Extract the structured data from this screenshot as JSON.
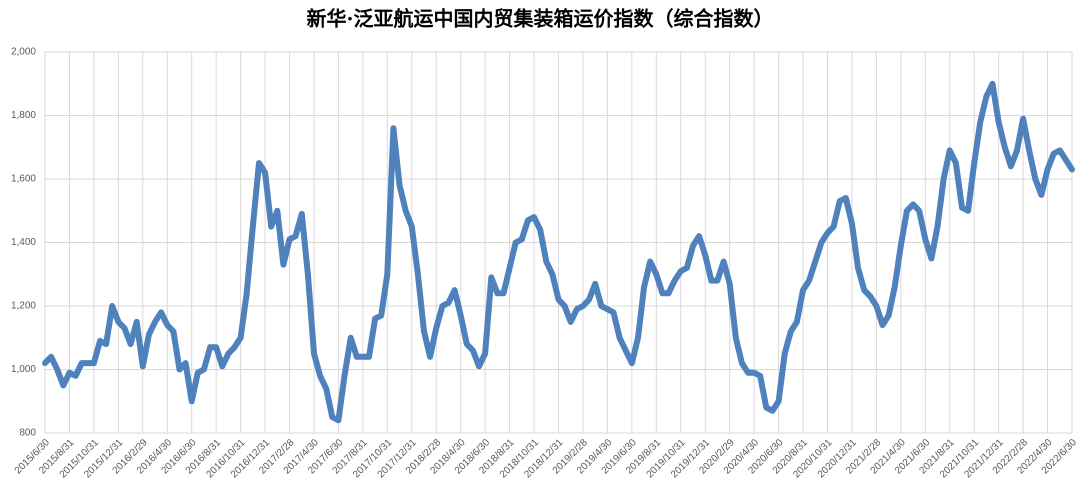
{
  "chart_data": {
    "type": "line",
    "title": "新华·泛亚航运中国内贸集装箱运价指数（综合指数）",
    "categories": [
      "2015/6/30",
      null,
      null,
      null,
      "2015/8/31",
      null,
      null,
      null,
      "2015/10/31",
      null,
      null,
      null,
      "2015/12/31",
      null,
      null,
      null,
      "2016/2/29",
      null,
      null,
      null,
      "2016/4/30",
      null,
      null,
      null,
      "2016/6/30",
      null,
      null,
      null,
      "2016/8/31",
      null,
      null,
      null,
      "2016/10/31",
      null,
      null,
      null,
      "2016/12/31",
      null,
      null,
      null,
      "2017/2/28",
      null,
      null,
      null,
      "2017/4/30",
      null,
      null,
      null,
      "2017/6/30",
      null,
      null,
      null,
      "2017/8/31",
      null,
      null,
      null,
      "2017/10/31",
      null,
      null,
      null,
      "2017/12/31",
      null,
      null,
      null,
      "2018/2/28",
      null,
      null,
      null,
      "2018/4/30",
      null,
      null,
      null,
      "2018/6/30",
      null,
      null,
      null,
      "2018/8/31",
      null,
      null,
      null,
      "2018/10/31",
      null,
      null,
      null,
      "2018/12/31",
      null,
      null,
      null,
      "2019/2/28",
      null,
      null,
      null,
      "2019/4/30",
      null,
      null,
      null,
      "2019/6/30",
      null,
      null,
      null,
      "2019/8/31",
      null,
      null,
      null,
      "2019/10/31",
      null,
      null,
      null,
      "2019/12/31",
      null,
      null,
      null,
      "2020/2/29",
      null,
      null,
      null,
      "2020/4/30",
      null,
      null,
      null,
      "2020/6/30",
      null,
      null,
      null,
      "2020/8/31",
      null,
      null,
      null,
      "2020/10/31",
      null,
      null,
      null,
      "2020/12/31",
      null,
      null,
      null,
      "2021/2/28",
      null,
      null,
      null,
      "2021/4/30",
      null,
      null,
      null,
      "2021/6/30",
      null,
      null,
      null,
      "2021/8/31",
      null,
      null,
      null,
      "2021/10/31",
      null,
      null,
      null,
      "2021/12/31",
      null,
      null,
      null,
      "2022/2/28",
      null,
      null,
      null,
      "2022/4/30",
      null,
      null,
      null,
      "2022/6/30"
    ],
    "values": [
      1020,
      1040,
      1000,
      950,
      990,
      980,
      1020,
      1020,
      1020,
      1090,
      1080,
      1200,
      1150,
      1130,
      1080,
      1150,
      1010,
      1110,
      1150,
      1180,
      1140,
      1120,
      1000,
      1020,
      900,
      990,
      1000,
      1070,
      1070,
      1010,
      1050,
      1070,
      1100,
      1240,
      1450,
      1650,
      1620,
      1450,
      1500,
      1330,
      1410,
      1420,
      1490,
      1300,
      1050,
      980,
      940,
      850,
      840,
      980,
      1100,
      1040,
      1040,
      1040,
      1160,
      1170,
      1300,
      1760,
      1580,
      1500,
      1450,
      1300,
      1120,
      1040,
      1130,
      1200,
      1210,
      1250,
      1170,
      1080,
      1060,
      1010,
      1050,
      1290,
      1240,
      1240,
      1320,
      1400,
      1410,
      1470,
      1480,
      1440,
      1340,
      1300,
      1220,
      1200,
      1150,
      1190,
      1200,
      1220,
      1270,
      1200,
      1190,
      1180,
      1100,
      1060,
      1020,
      1100,
      1260,
      1340,
      1300,
      1240,
      1240,
      1280,
      1310,
      1320,
      1390,
      1420,
      1360,
      1280,
      1280,
      1340,
      1270,
      1100,
      1020,
      990,
      990,
      980,
      880,
      870,
      900,
      1050,
      1120,
      1150,
      1250,
      1280,
      1340,
      1400,
      1430,
      1450,
      1530,
      1540,
      1460,
      1320,
      1250,
      1230,
      1200,
      1140,
      1170,
      1260,
      1390,
      1500,
      1520,
      1500,
      1410,
      1350,
      1450,
      1600,
      1690,
      1650,
      1510,
      1500,
      1650,
      1780,
      1860,
      1900,
      1780,
      1700,
      1640,
      1690,
      1790,
      1690,
      1600,
      1550,
      1630,
      1680,
      1690,
      1660,
      1630
    ],
    "color": "#4f81bd",
    "ylim": [
      800,
      2000
    ],
    "yticks": [
      800,
      {
        "value": 1000,
        "label": "1,000"
      },
      {
        "value": 1200,
        "label": "1,200"
      },
      {
        "value": 1400,
        "label": "1,400"
      },
      {
        "value": 1600,
        "label": "1,600"
      },
      {
        "value": 1800,
        "label": "1,800"
      },
      {
        "value": 2000,
        "label": "2,000"
      }
    ],
    "grid": true
  }
}
